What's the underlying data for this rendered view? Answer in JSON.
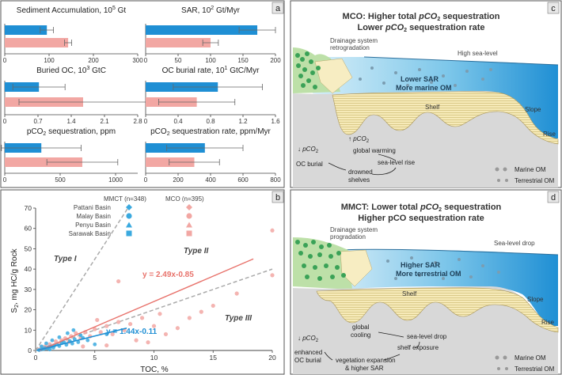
{
  "panel_a": {
    "label": "a",
    "subplots": [
      {
        "title": "Sediment Accumulation, 10",
        "sup": "5",
        "title_end": " Gt",
        "ticks": [
          "0",
          "100",
          "200",
          "300"
        ],
        "max": 300,
        "blue": 95,
        "pink": 143,
        "blue_err": 15,
        "pink_err": 8
      },
      {
        "title": "SAR, 10",
        "sup": "2",
        "title_end": " Gt/Myr",
        "ticks": [
          "0",
          "50",
          "100",
          "150",
          "200"
        ],
        "max": 200,
        "blue": 172,
        "pink": 100,
        "blue_err": 28,
        "pink_err": 12
      },
      {
        "title": "Buried OC, 10",
        "sup": "3",
        "title_end": " GtC",
        "ticks": [
          "0",
          "0.7",
          "1.4",
          "2.1",
          "2.8"
        ],
        "max": 2.8,
        "blue": 0.72,
        "pink": 1.65,
        "blue_err": 0.55,
        "pink_err": 1.35
      },
      {
        "title": "OC burial rate, 10",
        "sup": "1",
        "title_end": " GtC/Myr",
        "ticks": [
          "0",
          "0.4",
          "0.8",
          "1.2",
          "1.6"
        ],
        "max": 1.6,
        "blue": 0.89,
        "pink": 0.63,
        "blue_err": 0.55,
        "pink_err": 0.47
      },
      {
        "title": "pCO",
        "sub": "2",
        "title_end": " sequestration, ppm",
        "ticks": [
          "0",
          "500",
          "1000"
        ],
        "max": 1200,
        "blue": 330,
        "pink": 700,
        "blue_err": 360,
        "pink_err": 320
      },
      {
        "title": "pCO",
        "sub": "2",
        "title_end": " sequestration rate, ppm/Myr",
        "ticks": [
          "0",
          "200",
          "400",
          "600",
          "800"
        ],
        "max": 800,
        "blue": 365,
        "pink": 300,
        "blue_err": 235,
        "pink_err": 155
      }
    ]
  },
  "panel_b": {
    "label": "b",
    "xlabel": "TOC, %",
    "ylabel": "S",
    "ylabel_sub": "2",
    "ylabel_end": ", mg HC/g Rock",
    "col_mmct": "MMCT (n=348)",
    "col_mco": "MCO (n=395)",
    "basins": [
      "Pattani Basin",
      "Malay Basin",
      "Penyu Basin",
      "Sarawak Basin"
    ],
    "type1": "Type I",
    "type2": "Type II",
    "type3": "Type III",
    "eq_pink": "y = 2.49x-0.85",
    "eq_blue": "y = 1.44x-0.11",
    "colors": {
      "mmct": "#3aa9df",
      "mco": "#f2a7a3"
    }
  },
  "chart_data": {
    "type": "scatter",
    "xlabel": "TOC, %",
    "ylabel": "S2, mg HC/g Rock",
    "xlim": [
      0,
      20
    ],
    "ylim": [
      0,
      70
    ],
    "xticks": [
      0,
      5,
      10,
      15,
      20
    ],
    "yticks": [
      0,
      10,
      20,
      30,
      40,
      50,
      60,
      70
    ],
    "series": [
      {
        "name": "MMCT (n=348)",
        "points": [
          [
            0.3,
            0.2
          ],
          [
            0.5,
            0.5
          ],
          [
            0.7,
            0.8
          ],
          [
            0.8,
            1.2
          ],
          [
            1.0,
            1.0
          ],
          [
            1.1,
            1.6
          ],
          [
            1.3,
            2.0
          ],
          [
            1.5,
            1.4
          ],
          [
            1.6,
            2.5
          ],
          [
            1.8,
            3.0
          ],
          [
            2.0,
            2.2
          ],
          [
            2.2,
            3.6
          ],
          [
            2.4,
            4.0
          ],
          [
            2.6,
            2.8
          ],
          [
            2.9,
            4.6
          ],
          [
            3.1,
            3.4
          ],
          [
            3.3,
            5.5
          ],
          [
            3.6,
            4.1
          ],
          [
            4.0,
            6.2
          ],
          [
            4.4,
            5.0
          ],
          [
            5.0,
            3.0
          ],
          [
            0.9,
            3.5
          ],
          [
            1.4,
            5.0
          ],
          [
            2.0,
            6.5
          ],
          [
            2.7,
            8.5
          ],
          [
            3.2,
            10.0
          ],
          [
            3.8,
            7.5
          ],
          [
            6.0,
            8.0
          ],
          [
            0.5,
            2.0
          ],
          [
            1.2,
            0.5
          ]
        ]
      },
      {
        "name": "MCO (n=395)",
        "points": [
          [
            0.3,
            0.5
          ],
          [
            0.5,
            1.2
          ],
          [
            0.8,
            2.0
          ],
          [
            1.0,
            1.5
          ],
          [
            1.2,
            3.0
          ],
          [
            1.5,
            2.5
          ],
          [
            1.7,
            4.5
          ],
          [
            2.0,
            3.5
          ],
          [
            2.2,
            5.0
          ],
          [
            2.5,
            6.0
          ],
          [
            2.8,
            4.2
          ],
          [
            3.0,
            7.0
          ],
          [
            3.4,
            8.5
          ],
          [
            3.8,
            6.0
          ],
          [
            4.2,
            9.0
          ],
          [
            4.6,
            7.0
          ],
          [
            5.0,
            10.5
          ],
          [
            5.5,
            9.0
          ],
          [
            6.0,
            12.0
          ],
          [
            6.5,
            8.0
          ],
          [
            7.0,
            14.0
          ],
          [
            7.5,
            10.0
          ],
          [
            8.0,
            13.0
          ],
          [
            9.0,
            16.0
          ],
          [
            10.0,
            12.0
          ],
          [
            10.5,
            18.0
          ],
          [
            12.0,
            11.0
          ],
          [
            13.0,
            16.0
          ],
          [
            14.0,
            19.0
          ],
          [
            15.0,
            22.0
          ],
          [
            17.0,
            28.0
          ],
          [
            20.0,
            37.0
          ],
          [
            20.0,
            59.0
          ],
          [
            7.0,
            34.0
          ],
          [
            6.0,
            2.5
          ],
          [
            8.5,
            5.0
          ],
          [
            4.0,
            2.0
          ],
          [
            9.5,
            4.0
          ],
          [
            11.0,
            8.0
          ],
          [
            5.2,
            15.0
          ]
        ]
      }
    ]
  },
  "panel_c": {
    "label": "c",
    "title1a": "MCO: Higher total ",
    "title1b": "pCO",
    "title1c": " sequestration",
    "title2a": "Lower ",
    "title2b": "pCO",
    "title2c": " sequestration rate",
    "drainage1": "Drainage system",
    "drainage2": "retrogradation",
    "sealevel": "High sea-level",
    "sar": "Lower SAR",
    "om": "More marine OM",
    "shelf": "Shelf",
    "slope": "Slope",
    "rise": "Rise",
    "pco2_down": "pCO",
    "pco2_up": "pCO",
    "burial": "OC burial",
    "warming": "global warming",
    "sealevel_rise": "sea-level rise",
    "drowned1": "drowned",
    "drowned2": "shelves",
    "marine_om": "Marine OM",
    "terr_om": "Terrestrial OM"
  },
  "panel_d": {
    "label": "d",
    "title1a": "MMCT: Lower total ",
    "title1b": "pCO",
    "title1c": " sequestration",
    "title2": "Higher pCO sequestration rate",
    "drainage1": "Drainage system",
    "drainage2": "progradation",
    "sealevel": "Sea-level drop",
    "sar": "Higher SAR",
    "om": "More terrestrial OM",
    "shelf": "Shelf",
    "slope": "Slope",
    "rise": "Rise",
    "pco2_down": "pCO",
    "cooling1": "global",
    "cooling2": "cooling",
    "sealevel_drop": "sea-level drop",
    "exposure": "shelf exposure",
    "enhanced1": "enhanced",
    "enhanced2": "OC burial",
    "veg1": "vegetation expansion",
    "veg2": "& higher SAR",
    "marine_om": "Marine OM",
    "terr_om": "Terrestrial OM"
  }
}
